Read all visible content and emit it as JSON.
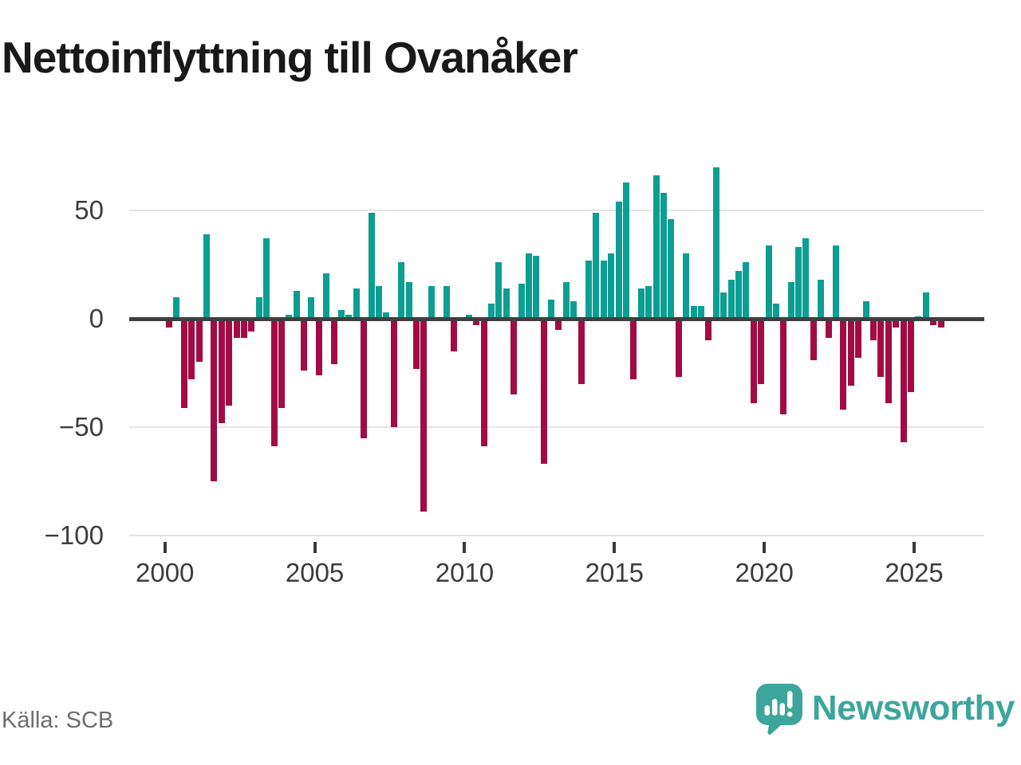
{
  "title": "Nettoinflyttning till Ovanåker",
  "footer": {
    "source": "Källa: SCB",
    "brand": "Newsworthy"
  },
  "colors": {
    "positive_bar": "#0b9e92",
    "negative_bar": "#a20b44",
    "zero_axis": "#3f3f3f",
    "gridline": "#e4e4e4",
    "tick_text": "#3d3d3d",
    "source_text": "#6d6d6d",
    "brand_teal": "#3ea59d"
  },
  "chart_data": {
    "type": "bar",
    "title": "Nettoinflyttning till Ovanåker",
    "ylabel": "",
    "xlabel": "",
    "frequency": "quarterly",
    "start": "2000 Q1",
    "end": "2025 Q4",
    "x_tick_years": [
      2000,
      2005,
      2010,
      2015,
      2020,
      2025
    ],
    "y_ticks": [
      50,
      0,
      -50,
      -100
    ],
    "y_tick_labels": [
      "50",
      "0",
      "−50",
      "−100"
    ],
    "ylim": [
      -100,
      81
    ],
    "grid": "horizontal-light",
    "legend": "none",
    "series": [
      {
        "name": "Nettoinflyttning per kvartal",
        "values": [
          -4,
          10,
          -41,
          -28,
          -20,
          39,
          -75,
          -48,
          -40,
          -9,
          -9,
          -6,
          10,
          37,
          -59,
          -41,
          2,
          13,
          -24,
          10,
          -26,
          21,
          -21,
          4,
          2,
          14,
          -55,
          49,
          15,
          3,
          -50,
          26,
          17,
          -23,
          -89,
          15,
          0,
          15,
          -15,
          0,
          2,
          -3,
          -59,
          7,
          26,
          14,
          -35,
          16,
          30,
          29,
          -67,
          9,
          -5,
          17,
          8,
          -30,
          27,
          49,
          27,
          30,
          54,
          63,
          -28,
          14,
          15,
          66,
          58,
          46,
          -27,
          30,
          6,
          6,
          -10,
          70,
          12,
          18,
          22,
          26,
          -39,
          -30,
          34,
          7,
          -44,
          17,
          33,
          37,
          -19,
          18,
          -9,
          34,
          -42,
          -31,
          -18,
          8,
          -10,
          -27,
          -39,
          -4,
          -57,
          -34,
          1,
          12,
          -3,
          -4
        ]
      }
    ]
  }
}
